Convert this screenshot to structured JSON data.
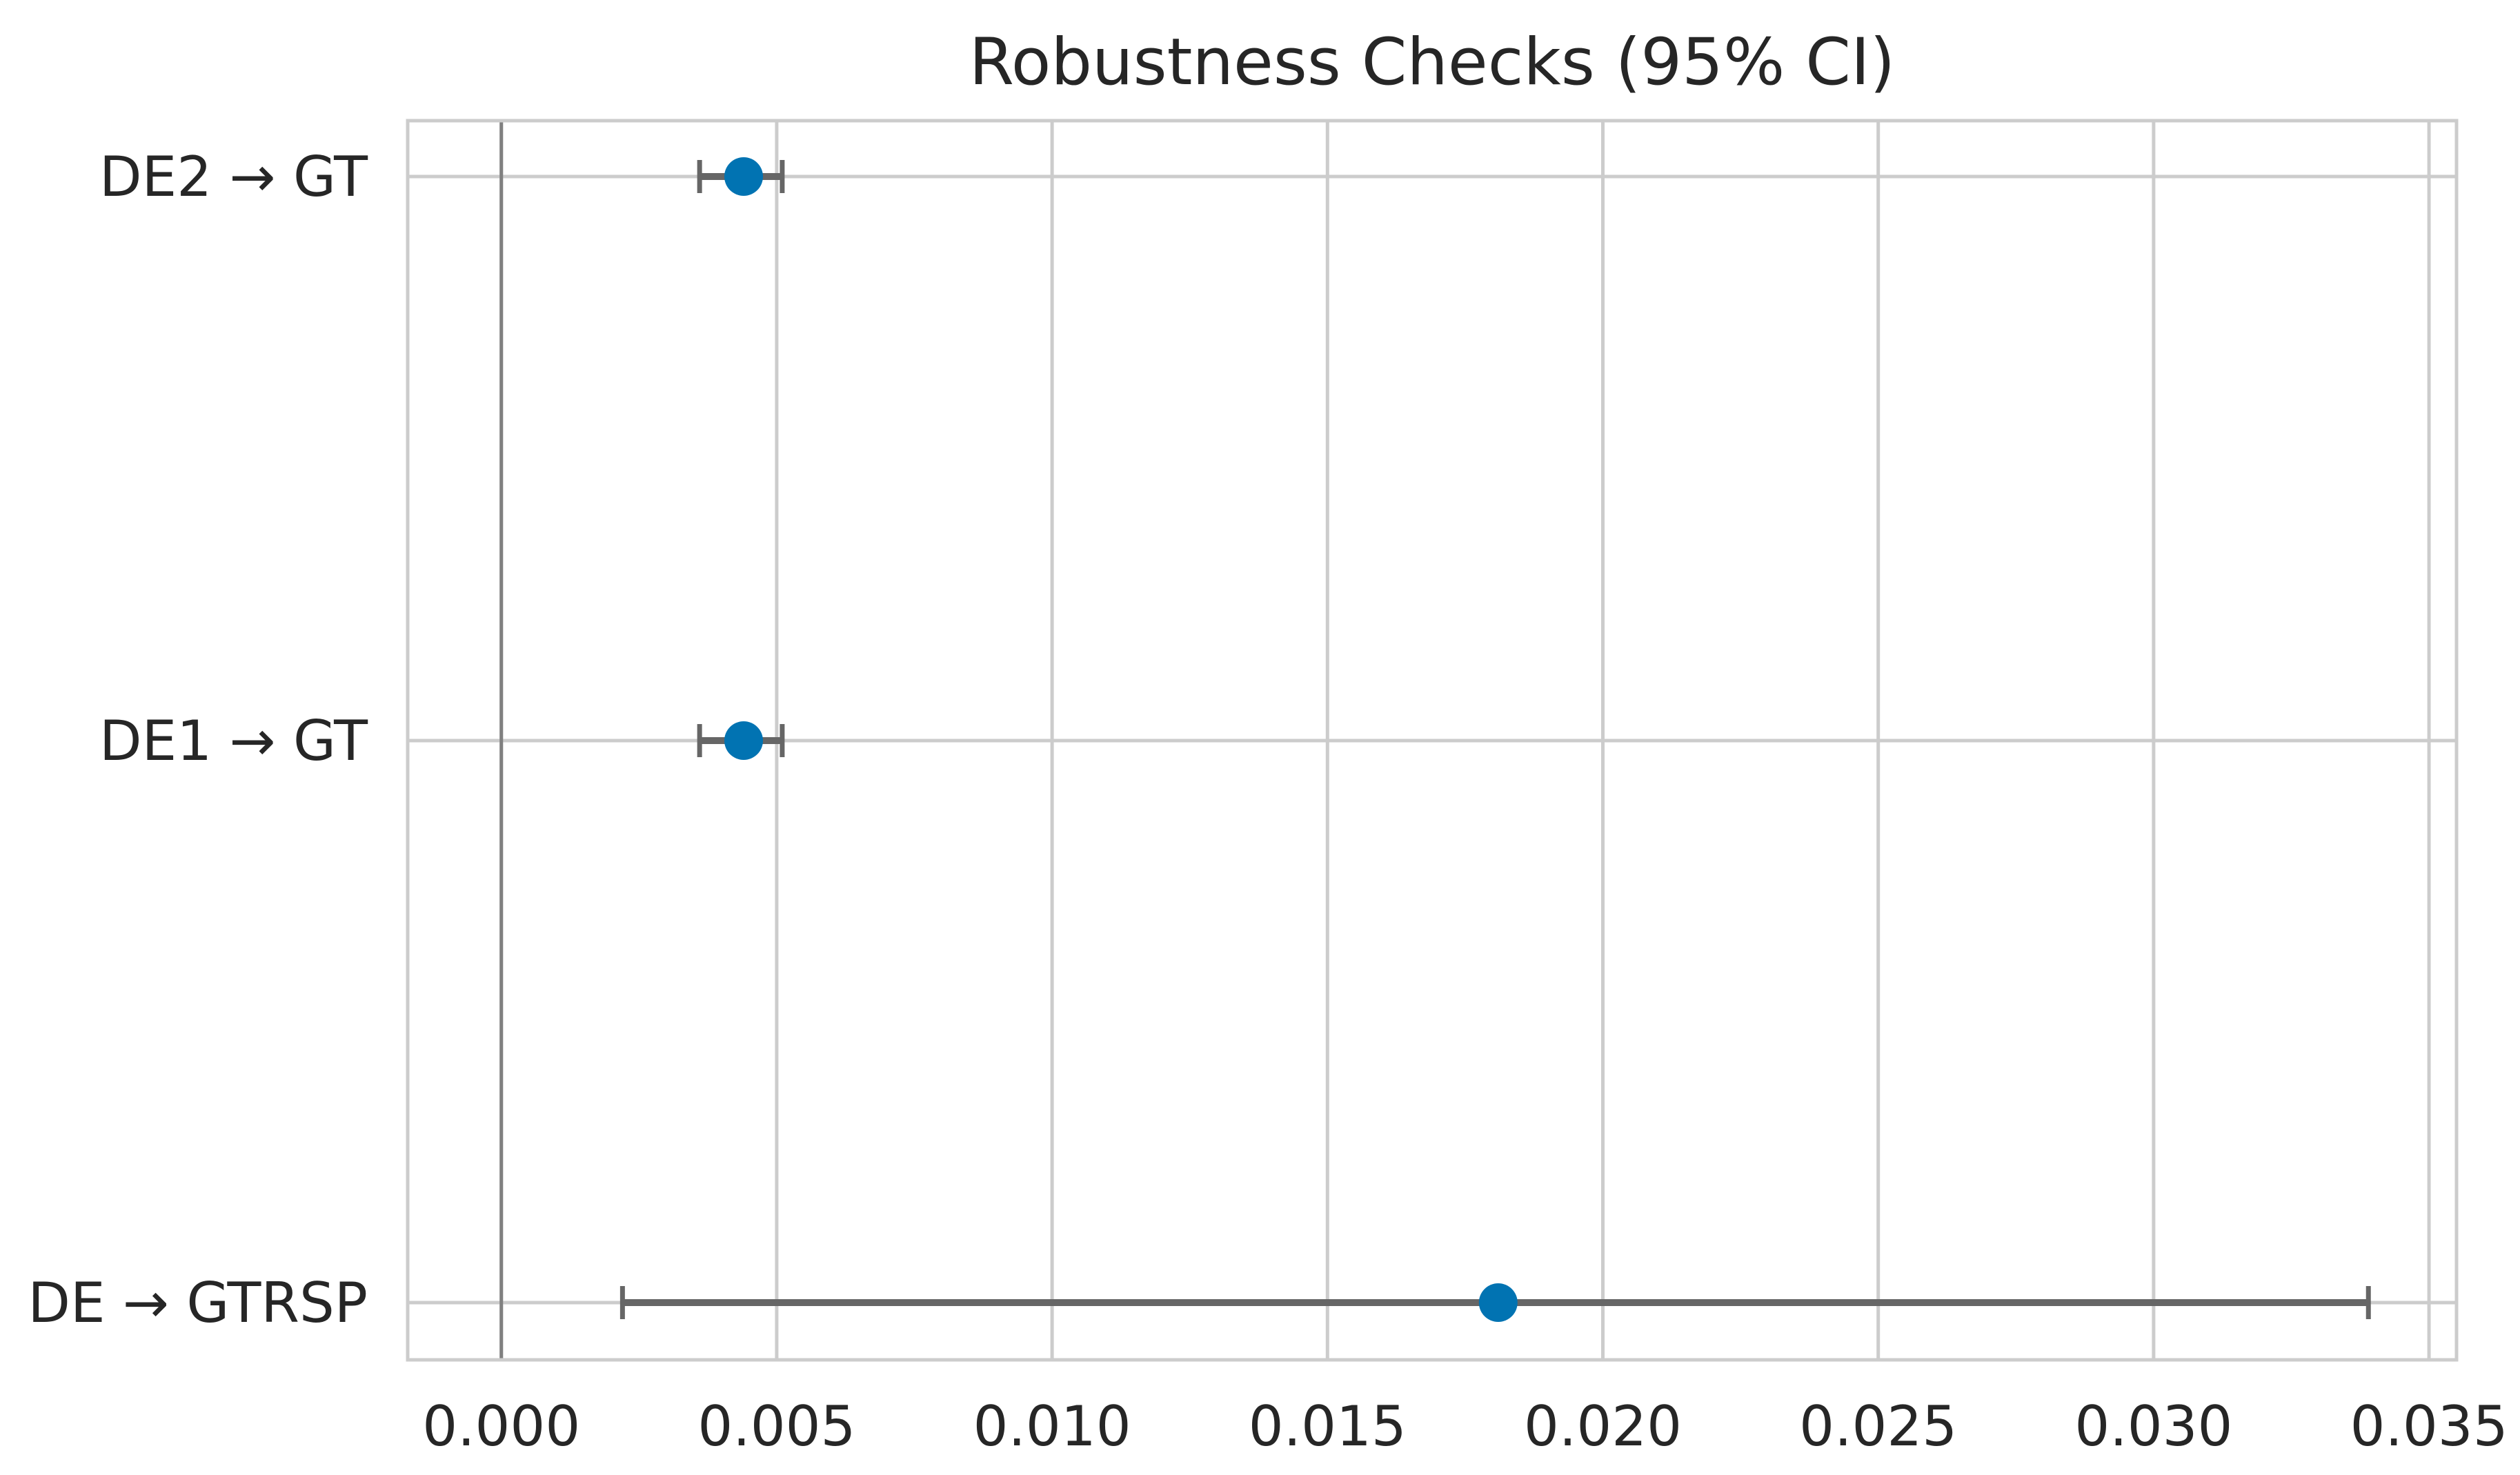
{
  "chart_data": {
    "type": "scatter",
    "title": "Robustness Checks (95% CI)",
    "xlabel": "",
    "ylabel": "",
    "xlim": [
      -0.0017,
      0.0355
    ],
    "xticks": [
      "0.000",
      "0.005",
      "0.010",
      "0.015",
      "0.020",
      "0.025",
      "0.030",
      "0.035"
    ],
    "categories": [
      "DE2 → GT",
      "DE1 → GT",
      "DE → GTRSP"
    ],
    "estimates": [
      0.0044,
      0.0044,
      0.0181
    ],
    "ci_lower": [
      0.0036,
      0.0036,
      0.0022
    ],
    "ci_upper": [
      0.0051,
      0.0051,
      0.0339
    ],
    "reference_line_x": 0,
    "grid": true,
    "colors": {
      "point": "#0173b2",
      "errorbar": "#666666",
      "grid": "#cccccc",
      "reference_line": "#808080",
      "spine": "#cccccc",
      "text": "#262626"
    }
  }
}
